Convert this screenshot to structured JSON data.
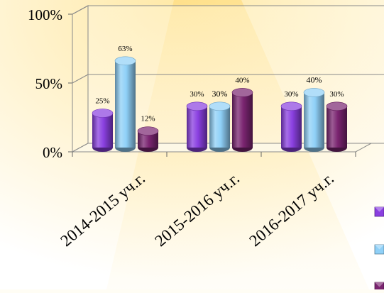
{
  "chart_data": {
    "type": "bar",
    "categories": [
      "2014-2015 уч.г.",
      "2015-2016 уч.г.",
      "2016-2017 уч.г."
    ],
    "series": [
      {
        "color": "#8a3fe0",
        "values": [
          25,
          30,
          30
        ]
      },
      {
        "color": "#8fd0f7",
        "values": [
          63,
          30,
          40
        ]
      },
      {
        "color": "#7a2470",
        "values": [
          12,
          40,
          30
        ]
      }
    ],
    "data_labels": [
      [
        "25%",
        "30%",
        "30%"
      ],
      [
        "63%",
        "30%",
        "40%"
      ],
      [
        "12%",
        "40%",
        "30%"
      ]
    ],
    "y_ticks": [
      "0%",
      "50%",
      "100%"
    ],
    "ylim": [
      0,
      100
    ],
    "grid": true,
    "legend": "right, partially cut off",
    "style": "3d-cylinder"
  }
}
